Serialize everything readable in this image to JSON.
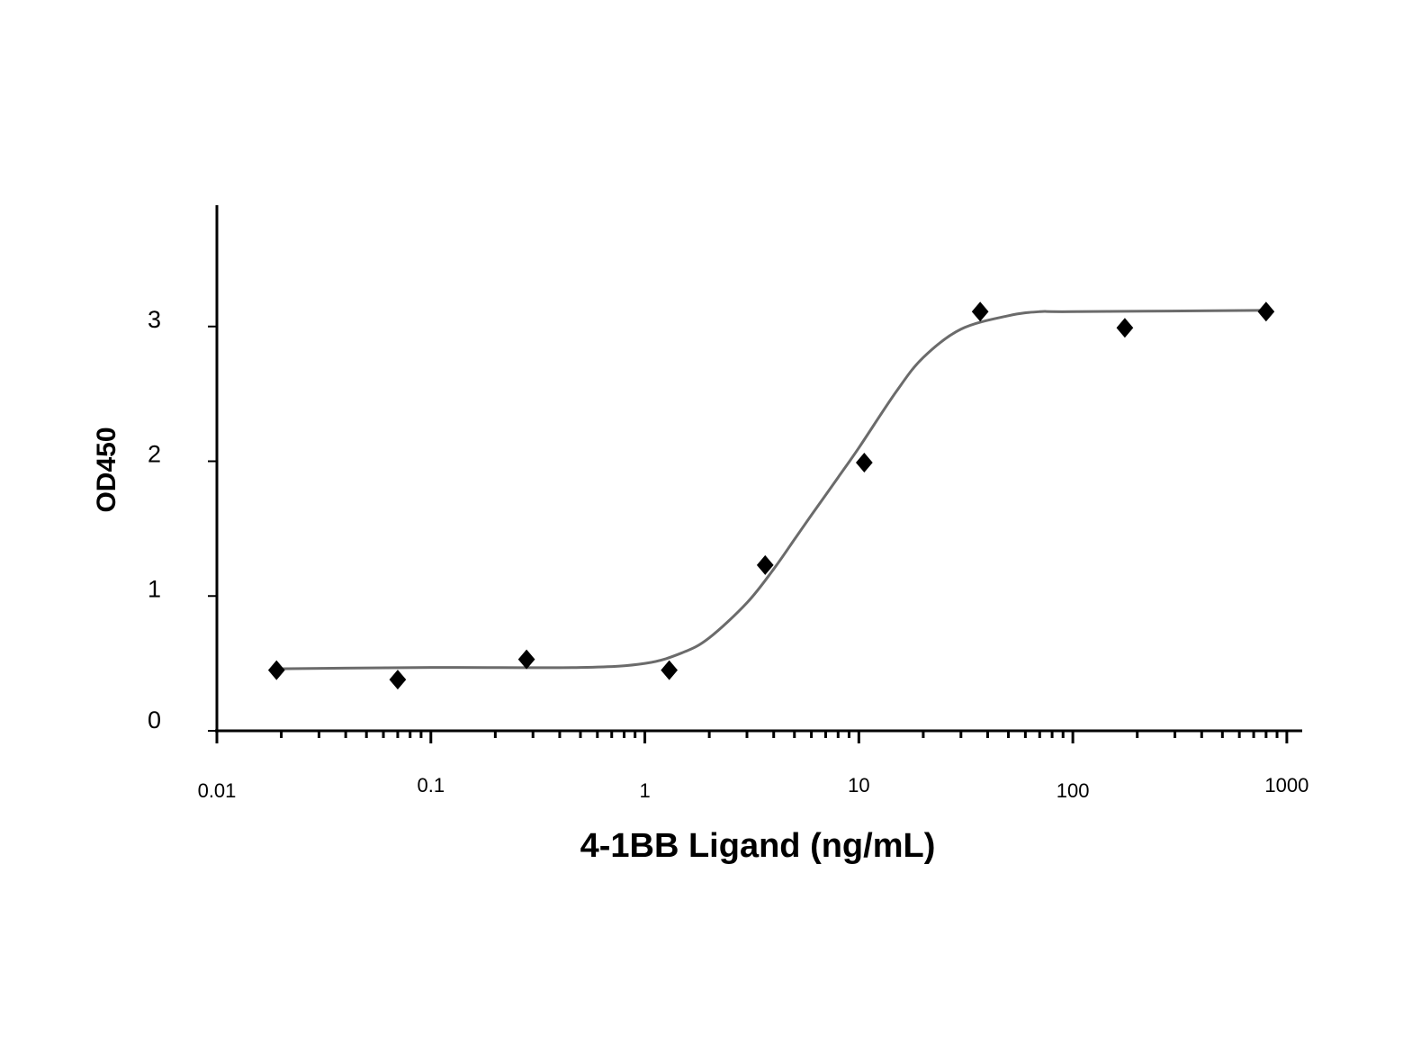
{
  "chart_data": {
    "type": "scatter",
    "x_label": "4-1BB Ligand (ng/mL)",
    "y_label": "OD450",
    "xscale": "log",
    "xlim": [
      0.01,
      1180
    ],
    "xticks": [
      0.01,
      0.1,
      1,
      10,
      100,
      1000
    ],
    "xminorticks": [
      0.02,
      0.03,
      0.04,
      0.05,
      0.06,
      0.07,
      0.08,
      0.09,
      0.2,
      0.3,
      0.4,
      0.5,
      0.6,
      0.7,
      0.8,
      0.9,
      2,
      3,
      4,
      5,
      6,
      7,
      8,
      9,
      20,
      30,
      40,
      50,
      60,
      70,
      80,
      90,
      200,
      300,
      400,
      500,
      600,
      700,
      800,
      900
    ],
    "ylim": [
      0,
      3.9
    ],
    "yticks": [
      0,
      1,
      2,
      3
    ],
    "grid": false,
    "series": [
      {
        "mode": "markers",
        "marker": "diamond",
        "color": "#000000",
        "x": [
          0.019,
          0.07,
          0.28,
          1.3,
          3.65,
          10.6,
          36.9,
          175,
          800
        ],
        "values": [
          0.45,
          0.38,
          0.53,
          0.45,
          1.23,
          1.99,
          3.11,
          2.99,
          3.11
        ]
      },
      {
        "mode": "line",
        "color": "#6b6b6b",
        "x": [
          0.019,
          0.1,
          0.5,
          1,
          1.5,
          2,
          3,
          4,
          5,
          6,
          8,
          10,
          15,
          20,
          30,
          50,
          70,
          100,
          800
        ],
        "values": [
          0.46,
          0.47,
          0.47,
          0.5,
          0.58,
          0.69,
          0.95,
          1.2,
          1.42,
          1.6,
          1.88,
          2.1,
          2.52,
          2.77,
          2.98,
          3.08,
          3.11,
          3.11,
          3.12
        ]
      }
    ]
  }
}
